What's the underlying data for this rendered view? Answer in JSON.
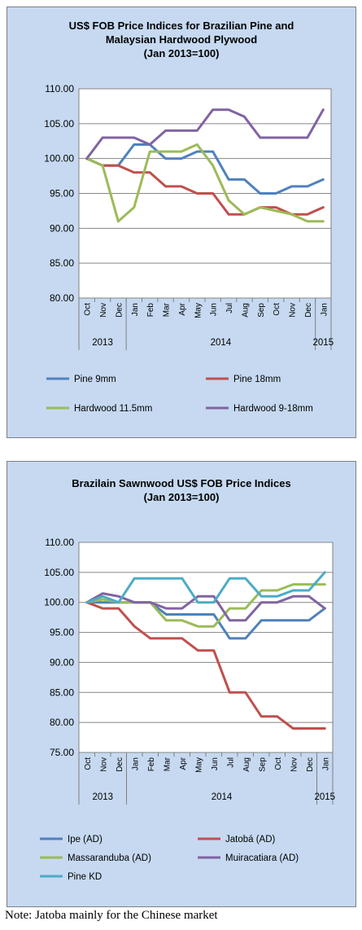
{
  "chart_data": [
    {
      "type": "line",
      "title": "US$ FOB Price Indices for Brazilian Pine and Malaysian Hardwood Plywood",
      "title_lines": [
        "US$ FOB Price Indices for Brazilian Pine and",
        "Malaysian Hardwood Plywood",
        "(Jan 2013=100)"
      ],
      "categories": [
        "Oct",
        "Nov",
        "Dec",
        "Jan",
        "Feb",
        "Mar",
        "Apr",
        "May",
        "Jun",
        "Jul",
        "Aug",
        "Sep",
        "Oct",
        "Nov",
        "Dec",
        "Jan"
      ],
      "years": [
        {
          "label": "2013",
          "start": 0,
          "end": 2
        },
        {
          "label": "2014",
          "start": 3,
          "end": 14
        },
        {
          "label": "2015",
          "start": 15,
          "end": 15
        }
      ],
      "ylim": [
        80,
        110
      ],
      "yticks": [
        "80.00",
        "85.00",
        "90.00",
        "95.00",
        "100.00",
        "105.00",
        "110.00"
      ],
      "grid": true,
      "legend_position": "bottom",
      "series": [
        {
          "name": "Pine 9mm",
          "color": "#4f81bd",
          "values": [
            100,
            99,
            99,
            102,
            102,
            100,
            100,
            101,
            101,
            97,
            97,
            95,
            95,
            96,
            96,
            97
          ]
        },
        {
          "name": "Pine 18mm",
          "color": "#c0504d",
          "values": [
            100,
            99,
            99,
            98,
            98,
            96,
            96,
            95,
            95,
            92,
            92,
            93,
            93,
            92,
            92,
            93
          ]
        },
        {
          "name": "Hardwood 11.5mm",
          "color": "#9bbb59",
          "values": [
            100,
            99,
            91,
            93,
            101,
            101,
            101,
            102,
            99,
            94,
            92,
            93,
            92.5,
            92,
            91,
            91
          ]
        },
        {
          "name": "Hardwood 9-18mm",
          "color": "#8064a2",
          "values": [
            100,
            103,
            103,
            103,
            102,
            104,
            104,
            104,
            107,
            107,
            106,
            103,
            103,
            103,
            103,
            107
          ]
        }
      ]
    },
    {
      "type": "line",
      "title": "Brazilain Sawnwood US$ FOB Price Indices",
      "title_lines": [
        "Brazilain Sawnwood US$ FOB Price Indices",
        "(Jan 2013=100)"
      ],
      "categories": [
        "Oct",
        "Nov",
        "Dec",
        "Jan",
        "Feb",
        "Mar",
        "Apr",
        "May",
        "Jun",
        "Jul",
        "Aug",
        "Sep",
        "Oct",
        "Nov",
        "Dec",
        "Jan"
      ],
      "years": [
        {
          "label": "2013",
          "start": 0,
          "end": 2
        },
        {
          "label": "2014",
          "start": 3,
          "end": 14
        },
        {
          "label": "2015",
          "start": 15,
          "end": 15
        }
      ],
      "ylim": [
        75,
        110
      ],
      "yticks": [
        "75.00",
        "80.00",
        "85.00",
        "90.00",
        "95.00",
        "100.00",
        "105.00",
        "110.00"
      ],
      "grid": true,
      "legend_position": "bottom",
      "series": [
        {
          "name": "Ipe (AD)",
          "color": "#4f81bd",
          "values": [
            100,
            100,
            100,
            100,
            100,
            98,
            98,
            98,
            98,
            94,
            94,
            97,
            97,
            97,
            97,
            99
          ]
        },
        {
          "name": "Jatobá (AD)",
          "color": "#c0504d",
          "values": [
            100,
            99,
            99,
            96,
            94,
            94,
            94,
            92,
            92,
            85,
            85,
            81,
            81,
            79,
            79,
            79
          ]
        },
        {
          "name": "Massaranduba (AD)",
          "color": "#9bbb59",
          "values": [
            100,
            100.5,
            100,
            100,
            100,
            97,
            97,
            96,
            96,
            99,
            99,
            102,
            102,
            103,
            103,
            103
          ]
        },
        {
          "name": "Muiracatiara (AD)",
          "color": "#8064a2",
          "values": [
            100,
            101.5,
            101,
            100,
            100,
            99,
            99,
            101,
            101,
            97,
            97,
            100,
            100,
            101,
            101,
            99
          ]
        },
        {
          "name": "Pine KD",
          "color": "#4bacc6",
          "values": [
            100,
            101,
            100,
            104,
            104,
            104,
            104,
            100,
            100,
            104,
            104,
            101,
            101,
            102,
            102,
            105
          ]
        }
      ]
    }
  ],
  "note": "Note: Jatoba mainly for the Chinese market"
}
